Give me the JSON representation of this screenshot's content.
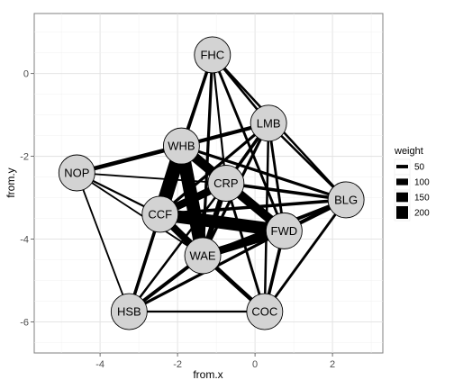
{
  "chart_data": {
    "type": "network",
    "xlabel": "from.x",
    "ylabel": "from.y",
    "xlim": [
      -5.7,
      3.3
    ],
    "ylim": [
      -6.75,
      1.45
    ],
    "x_ticks": [
      -4,
      -2,
      0,
      2
    ],
    "y_ticks": [
      0,
      -2,
      -4,
      -6
    ],
    "x_tick_labels": [
      "-4",
      "-2",
      "0",
      "2"
    ],
    "y_tick_labels": [
      "0",
      "-2",
      "-4",
      "-6"
    ],
    "grid": true,
    "legend": {
      "title": "weight",
      "placement": "right",
      "entries": [
        {
          "label": "50",
          "value": 50
        },
        {
          "label": "100",
          "value": 100
        },
        {
          "label": "150",
          "value": 150
        },
        {
          "label": "200",
          "value": 200
        }
      ]
    },
    "nodes": [
      {
        "name": "FHC",
        "x": -1.1,
        "y": 0.45
      },
      {
        "name": "LMB",
        "x": 0.35,
        "y": -1.2
      },
      {
        "name": "WHB",
        "x": -1.9,
        "y": -1.75
      },
      {
        "name": "NOP",
        "x": -4.6,
        "y": -2.4
      },
      {
        "name": "CRP",
        "x": -0.75,
        "y": -2.65
      },
      {
        "name": "BLG",
        "x": 2.35,
        "y": -3.05
      },
      {
        "name": "CCF",
        "x": -2.45,
        "y": -3.4
      },
      {
        "name": "FWD",
        "x": 0.75,
        "y": -3.8
      },
      {
        "name": "WAE",
        "x": -1.35,
        "y": -4.4
      },
      {
        "name": "HSB",
        "x": -3.25,
        "y": -5.75
      },
      {
        "name": "COC",
        "x": 0.25,
        "y": -5.75
      }
    ],
    "edges": [
      {
        "from": "WHB",
        "to": "CCF",
        "weight": 220
      },
      {
        "from": "WHB",
        "to": "WAE",
        "weight": 210
      },
      {
        "from": "WHB",
        "to": "CRP",
        "weight": 150
      },
      {
        "from": "WHB",
        "to": "FWD",
        "weight": 140
      },
      {
        "from": "CCF",
        "to": "FWD",
        "weight": 200
      },
      {
        "from": "CCF",
        "to": "CRP",
        "weight": 120
      },
      {
        "from": "CCF",
        "to": "WAE",
        "weight": 110
      },
      {
        "from": "CRP",
        "to": "FWD",
        "weight": 130
      },
      {
        "from": "WAE",
        "to": "FWD",
        "weight": 120
      },
      {
        "from": "WAE",
        "to": "CRP",
        "weight": 80
      },
      {
        "from": "WHB",
        "to": "LMB",
        "weight": 55
      },
      {
        "from": "NOP",
        "to": "WHB",
        "weight": 60
      },
      {
        "from": "FHC",
        "to": "CCF",
        "weight": 45
      },
      {
        "from": "FHC",
        "to": "WAE",
        "weight": 40
      },
      {
        "from": "FHC",
        "to": "LMB",
        "weight": 30
      },
      {
        "from": "FHC",
        "to": "FWD",
        "weight": 35
      },
      {
        "from": "FHC",
        "to": "WHB",
        "weight": 30
      },
      {
        "from": "FHC",
        "to": "CRP",
        "weight": 25
      },
      {
        "from": "FHC",
        "to": "BLG",
        "weight": 30
      },
      {
        "from": "LMB",
        "to": "CRP",
        "weight": 45
      },
      {
        "from": "LMB",
        "to": "CCF",
        "weight": 40
      },
      {
        "from": "LMB",
        "to": "WAE",
        "weight": 40
      },
      {
        "from": "LMB",
        "to": "FWD",
        "weight": 35
      },
      {
        "from": "LMB",
        "to": "BLG",
        "weight": 30
      },
      {
        "from": "LMB",
        "to": "COC",
        "weight": 30
      },
      {
        "from": "WHB",
        "to": "BLG",
        "weight": 40
      },
      {
        "from": "WHB",
        "to": "HSB",
        "weight": 35
      },
      {
        "from": "NOP",
        "to": "CCF",
        "weight": 25
      },
      {
        "from": "NOP",
        "to": "CRP",
        "weight": 20
      },
      {
        "from": "NOP",
        "to": "WAE",
        "weight": 20
      },
      {
        "from": "NOP",
        "to": "HSB",
        "weight": 20
      },
      {
        "from": "CRP",
        "to": "BLG",
        "weight": 45
      },
      {
        "from": "CRP",
        "to": "COC",
        "weight": 35
      },
      {
        "from": "CCF",
        "to": "BLG",
        "weight": 45
      },
      {
        "from": "CCF",
        "to": "HSB",
        "weight": 45
      },
      {
        "from": "CCF",
        "to": "COC",
        "weight": 35
      },
      {
        "from": "FWD",
        "to": "BLG",
        "weight": 55
      },
      {
        "from": "FWD",
        "to": "HSB",
        "weight": 40
      },
      {
        "from": "FWD",
        "to": "COC",
        "weight": 45
      },
      {
        "from": "WAE",
        "to": "BLG",
        "weight": 50
      },
      {
        "from": "WAE",
        "to": "HSB",
        "weight": 50
      },
      {
        "from": "WAE",
        "to": "COC",
        "weight": 60
      },
      {
        "from": "HSB",
        "to": "COC",
        "weight": 25
      },
      {
        "from": "BLG",
        "to": "COC",
        "weight": 35
      },
      {
        "from": "HSB",
        "to": "CRP",
        "weight": 30
      }
    ]
  }
}
